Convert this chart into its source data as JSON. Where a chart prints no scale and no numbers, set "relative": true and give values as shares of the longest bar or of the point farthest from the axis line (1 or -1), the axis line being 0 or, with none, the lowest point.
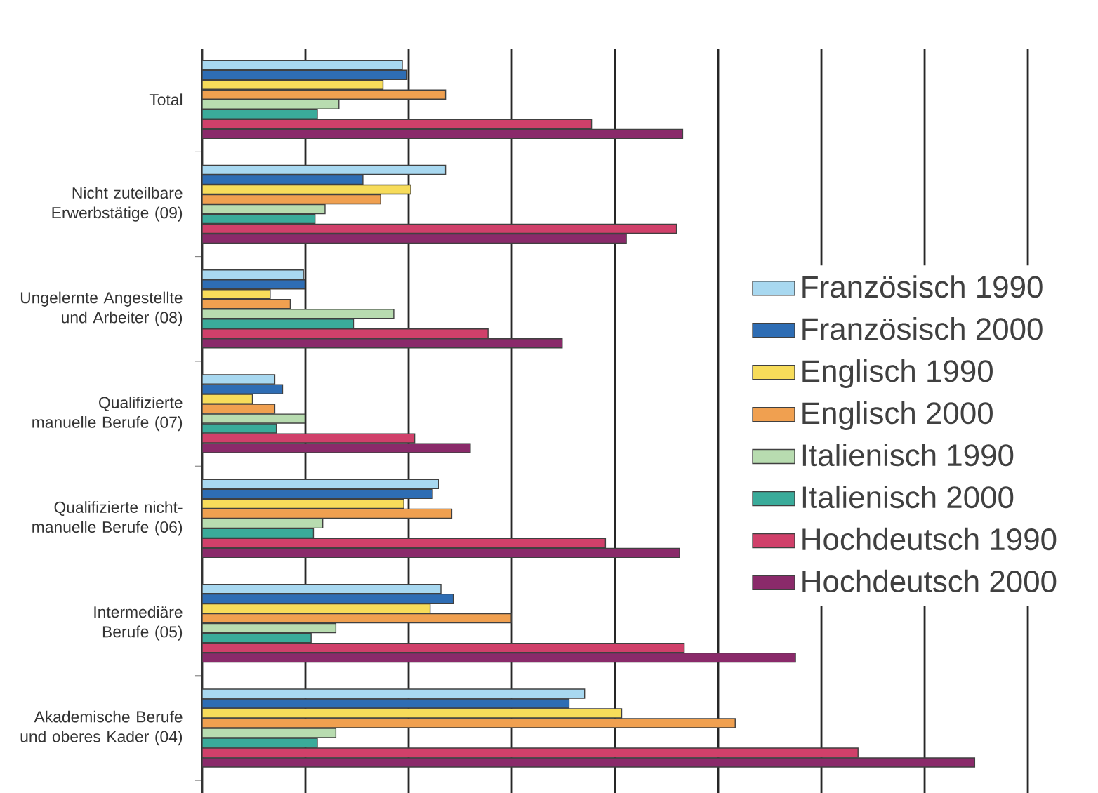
{
  "chart_data": {
    "type": "bar",
    "orientation": "horizontal",
    "relative": true,
    "grid": "x",
    "legend": "right",
    "categories": [
      "Total",
      "Nicht zuteilbare Erwerbstätige (09)",
      "Ungelernte Angestellte und Arbeiter (08)",
      "Qualifizierte manuelle Berufe (07)",
      "Qualifizierte nicht-manuelle Berufe (06)",
      "Intermediäre Berufe (05)",
      "Akademische Berufe und oberes Kader (04)"
    ],
    "series": [
      {
        "name": "Französisch 1990",
        "color": "#a8d8f0",
        "values": [
          0.259,
          0.315,
          0.131,
          0.094,
          0.306,
          0.309,
          0.495
        ]
      },
      {
        "name": "Französisch 2000",
        "color": "#2e6db4",
        "values": [
          0.265,
          0.208,
          0.133,
          0.104,
          0.298,
          0.325,
          0.475
        ]
      },
      {
        "name": "Englisch 1990",
        "color": "#f7dc5a",
        "values": [
          0.234,
          0.27,
          0.088,
          0.065,
          0.261,
          0.295,
          0.543
        ]
      },
      {
        "name": "Englisch 2000",
        "color": "#f0a050",
        "values": [
          0.315,
          0.231,
          0.114,
          0.094,
          0.323,
          0.4,
          0.69
        ]
      },
      {
        "name": "Italienisch 1990",
        "color": "#b8dcb0",
        "values": [
          0.177,
          0.159,
          0.248,
          0.133,
          0.156,
          0.173,
          0.173
        ]
      },
      {
        "name": "Italienisch 2000",
        "color": "#3aab9a",
        "values": [
          0.149,
          0.146,
          0.196,
          0.096,
          0.144,
          0.141,
          0.149
        ]
      },
      {
        "name": "Hochdeutsch 1990",
        "color": "#d0406a",
        "values": [
          0.504,
          0.614,
          0.37,
          0.275,
          0.522,
          0.624,
          0.849
        ]
      },
      {
        "name": "Hochdeutsch 2000",
        "color": "#8a2a6a",
        "values": [
          0.622,
          0.549,
          0.466,
          0.347,
          0.618,
          0.768,
          1
        ]
      }
    ]
  }
}
